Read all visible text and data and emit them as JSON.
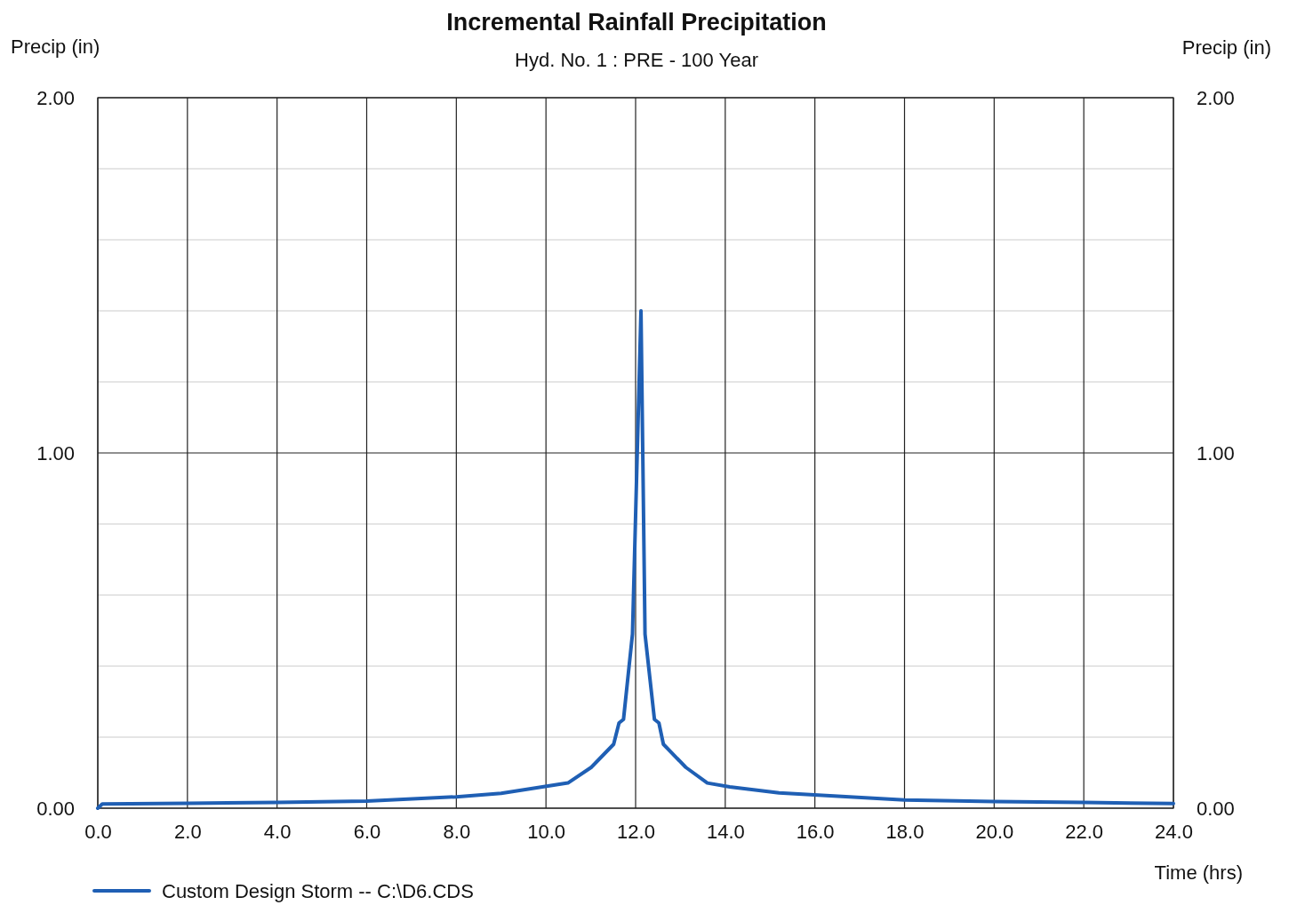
{
  "chart_data": {
    "type": "line",
    "title": "Incremental Rainfall Precipitation",
    "subtitle": "Hyd. No. 1 : PRE - 100 Year",
    "ylabel": "Precip (in)",
    "y2label": "Precip (in)",
    "xlabel": "Time (hrs)",
    "x": [
      0,
      0.1,
      2,
      4,
      6,
      8,
      9,
      9.92,
      10.49,
      11.01,
      11.51,
      11.63,
      11.73,
      11.93,
      12.12,
      12.21,
      12.42,
      12.52,
      12.62,
      13.12,
      13.6,
      14.1,
      15.2,
      18,
      20,
      22,
      24
    ],
    "series": [
      {
        "name": "Custom Design Storm -- C:\\D6.CDS",
        "color": "#1f5fb4",
        "values": [
          0,
          0.012,
          0.014,
          0.016,
          0.02,
          0.032,
          0.042,
          0.06,
          0.071,
          0.115,
          0.18,
          0.24,
          0.25,
          0.49,
          1.4,
          0.49,
          0.25,
          0.24,
          0.18,
          0.115,
          0.071,
          0.06,
          0.043,
          0.023,
          0.019,
          0.016,
          0.013
        ]
      }
    ],
    "xlim": [
      0,
      24
    ],
    "xticks": [
      {
        "value": 0,
        "label": "0.0"
      },
      {
        "value": 2,
        "label": "2.0"
      },
      {
        "value": 4,
        "label": "4.0"
      },
      {
        "value": 6,
        "label": "6.0"
      },
      {
        "value": 8,
        "label": "8.0"
      },
      {
        "value": 10,
        "label": "10.0"
      },
      {
        "value": 12,
        "label": "12.0"
      },
      {
        "value": 14,
        "label": "14.0"
      },
      {
        "value": 16,
        "label": "16.0"
      },
      {
        "value": 18,
        "label": "18.0"
      },
      {
        "value": 20,
        "label": "20.0"
      },
      {
        "value": 22,
        "label": "22.0"
      },
      {
        "value": 24,
        "label": "24.0"
      }
    ],
    "ylim": [
      0,
      2
    ],
    "yticks": [
      {
        "value": 0,
        "label": "0.00"
      },
      {
        "value": 0.2,
        "label": null
      },
      {
        "value": 0.4,
        "label": null
      },
      {
        "value": 0.6,
        "label": null
      },
      {
        "value": 0.8,
        "label": null
      },
      {
        "value": 1,
        "label": "1.00"
      },
      {
        "value": 1.2,
        "label": null
      },
      {
        "value": 1.4,
        "label": null
      },
      {
        "value": 1.6,
        "label": null
      },
      {
        "value": 1.8,
        "label": null
      },
      {
        "value": 2,
        "label": "2.00"
      }
    ],
    "y2lim": [
      0,
      2
    ],
    "y2ticks": [
      {
        "value": 0,
        "label": "0.00"
      },
      {
        "value": 1,
        "label": "1.00"
      },
      {
        "value": 2,
        "label": "2.00"
      }
    ],
    "grid": true,
    "legend": "bottom",
    "line_style": "solid",
    "marker": "none"
  }
}
